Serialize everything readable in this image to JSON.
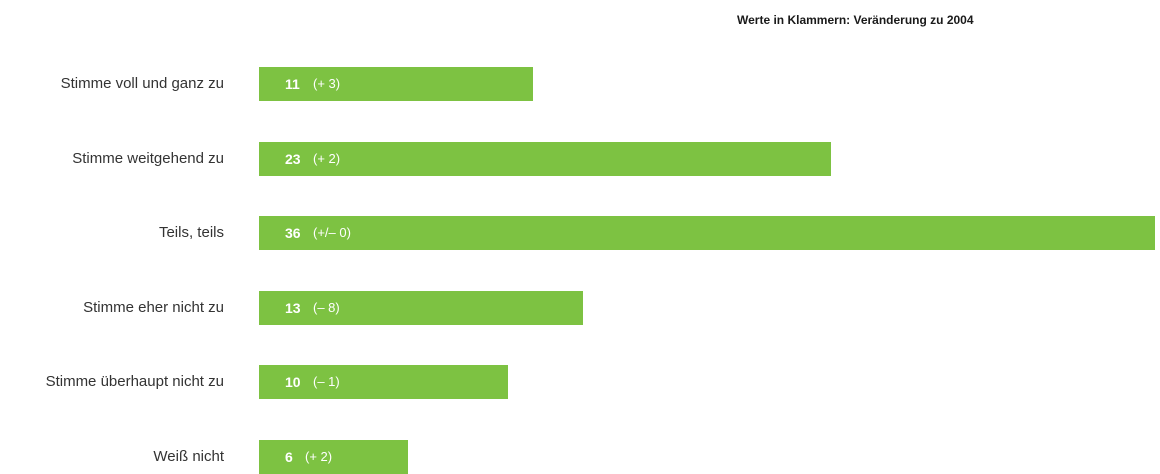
{
  "note": "Werte in Klammern: Veränderung zu 2004",
  "colors": {
    "bar": "#7dc242",
    "bar_text": "#ffffff",
    "label_text": "#333333"
  },
  "chart_data": {
    "type": "bar",
    "orientation": "horizontal",
    "title": "",
    "xlabel": "",
    "ylabel": "",
    "xlim": [
      0,
      36
    ],
    "grid": false,
    "legend": "none",
    "categories": [
      "Stimme voll und ganz zu",
      "Stimme weitgehend zu",
      "Teils, teils",
      "Stimme eher nicht zu",
      "Stimme überhaupt nicht zu",
      "Weiß nicht"
    ],
    "values": [
      11,
      23,
      36,
      13,
      10,
      6
    ],
    "data_labels": [
      "11",
      "23",
      "36",
      "13",
      "10",
      "6"
    ],
    "change_labels": [
      "(+ 3)",
      "(+ 2)",
      "(+/– 0)",
      "(– 8)",
      "(– 1)",
      "(+ 2)"
    ]
  }
}
